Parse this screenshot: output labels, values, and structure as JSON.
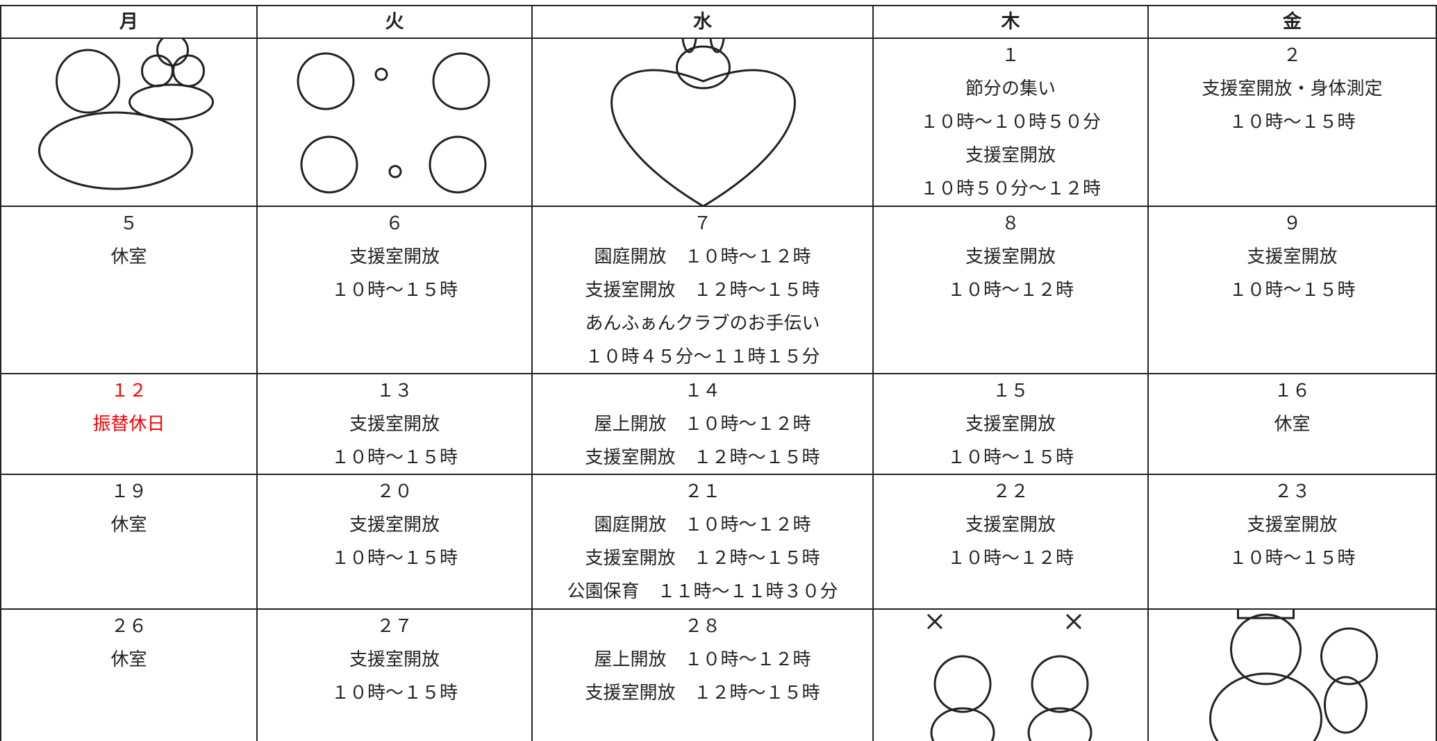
{
  "header": {
    "days": [
      "月",
      "火",
      "水",
      "木",
      "金"
    ]
  },
  "calendar": {
    "rows": [
      [
        null,
        null,
        null,
        {
          "date": "１",
          "events": [
            "節分の集い",
            "１０時～１０時５０分",
            "支援室開放",
            "１０時５０分～１２時"
          ]
        },
        {
          "date": "２",
          "events": [
            "支援室開放・身体測定",
            "１０時～１５時"
          ]
        }
      ],
      [
        {
          "date": "５",
          "events": [
            "休室"
          ]
        },
        {
          "date": "６",
          "events": [
            "支援室開放",
            "１０時～１５時"
          ]
        },
        {
          "date": "７",
          "events": [
            "園庭開放　１０時～１２時",
            "支援室開放　１２時～１５時",
            "あんふぁんクラブのお手伝い",
            "１０時４５分～１１時１５分"
          ]
        },
        {
          "date": "８",
          "events": [
            "支援室開放",
            "１０時～１２時"
          ]
        },
        {
          "date": "９",
          "events": [
            "支援室開放",
            "１０時～１５時"
          ]
        }
      ],
      [
        {
          "date": "１２",
          "events": [
            "振替休日"
          ],
          "color": "#ff0000"
        },
        {
          "date": "１３",
          "events": [
            "支援室開放",
            "１０時～１５時"
          ]
        },
        {
          "date": "１４",
          "events": [
            "屋上開放　１０時～１２時",
            "支援室開放　１２時～１５時"
          ]
        },
        {
          "date": "１５",
          "events": [
            "支援室開放",
            "１０時～１５時"
          ]
        },
        {
          "date": "１６",
          "events": [
            "休室"
          ]
        }
      ],
      [
        {
          "date": "１９",
          "events": [
            "休室"
          ]
        },
        {
          "date": "２０",
          "events": [
            "支援室開放",
            "１０時～１５時"
          ]
        },
        {
          "date": "２１",
          "events": [
            "園庭開放　１０時～１２時",
            "支援室開放　１２時～１５時",
            "公園保育　１１時～１１時３０分"
          ]
        },
        {
          "date": "２２",
          "events": [
            "支援室開放",
            "１０時～１２時"
          ]
        },
        {
          "date": "２３",
          "events": [
            "支援室開放",
            "１０時～１５時"
          ]
        }
      ],
      [
        {
          "date": "２６",
          "events": [
            "休室"
          ]
        },
        {
          "date": "２７",
          "events": [
            "支援室開放",
            "１０時～１５時"
          ]
        },
        {
          "date": "２８",
          "events": [
            "屋上開放　１０時～１２時",
            "支援室開放　１２時～１５時"
          ]
        },
        null,
        null
      ]
    ]
  }
}
